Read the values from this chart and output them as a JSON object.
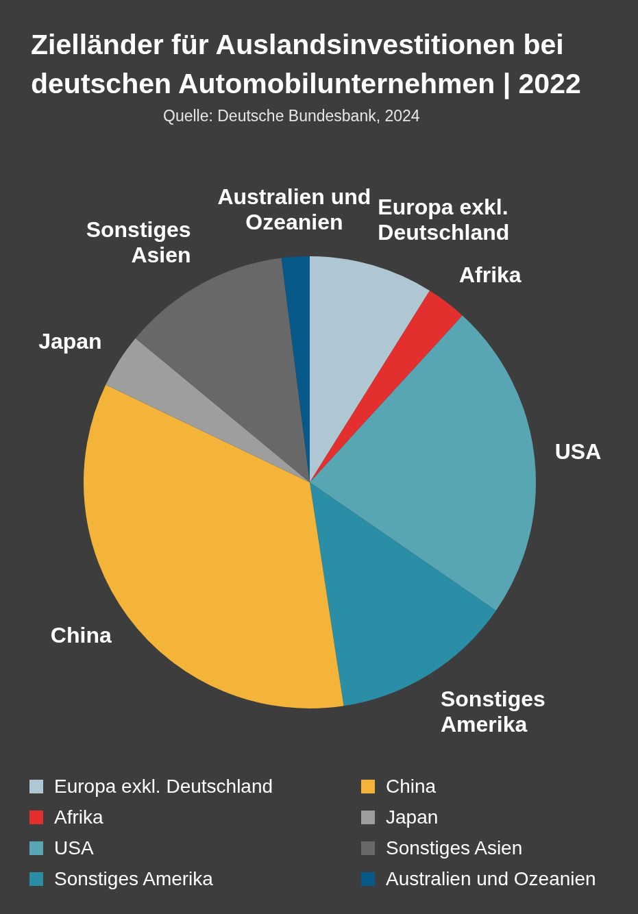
{
  "chart_data": {
    "type": "pie",
    "title": "Zielländer für Auslandsinvestitionen bei deutschen Automobilunternehmen | 2022",
    "annotations": [
      "Quelle: Deutsche Bundesbank, 2024"
    ],
    "categories": [
      "Europa exkl. Deutschland",
      "Afrika",
      "USA",
      "Sonstiges Amerika",
      "China",
      "Japan",
      "Sonstiges Asien",
      "Australien und Ozeanien"
    ],
    "values": [
      8.9,
      2.9,
      22.8,
      13.0,
      34.5,
      3.9,
      12.0,
      2.0
    ],
    "colors": [
      "#afc6d3",
      "#e3302f",
      "#58a6b3",
      "#2a8ea6",
      "#f4b43a",
      "#9e9e9e",
      "#686868",
      "#07598a"
    ],
    "legend": "bottom"
  }
}
